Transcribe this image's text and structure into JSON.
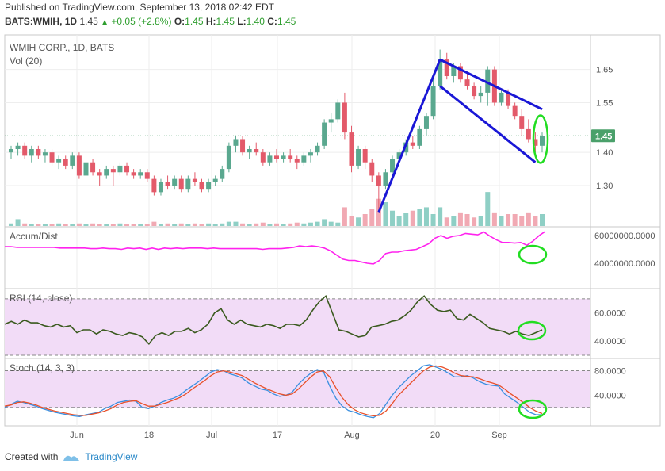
{
  "header": {
    "published": "Published on TradingView.com, September 13, 2018 02:42 EDT",
    "symbol": "BATS:WMIH, 1D",
    "last": "1.45",
    "change": "+0.05 (+2.8%)",
    "o_label": "O:",
    "o_value": "1.45",
    "h_label": "H:",
    "h_value": "1.45",
    "l_label": "L:",
    "l_value": "1.40",
    "c_label": "C:",
    "c_value": "1.45"
  },
  "footer": {
    "created_with": "Created with",
    "brand": "TradingView"
  },
  "colors": {
    "up": "#5aa88f",
    "down": "#e35a6a",
    "vol_up": "#8fcfc5",
    "vol_down": "#f1a9b3",
    "trend": "#1a17d6",
    "circle": "#22dd22",
    "accum": "#ff22ee",
    "rsi": "#3b5a1f",
    "stoch_k": "#3a8fe0",
    "stoch_d": "#e8502a",
    "pane_fill": "#f2dcf7",
    "last_badge": "#4aa06a"
  },
  "chart_data": [
    {
      "type": "candlestick",
      "title": "WMIH CORP., 1D, BATS",
      "subtitle": "Vol (20)",
      "ylim": [
        1.19,
        1.74
      ],
      "yticks": [
        "1.65",
        "1.55",
        "1.40",
        "1.30"
      ],
      "ytick_values": [
        1.65,
        1.55,
        1.4,
        1.3
      ],
      "last_price_label": "1.45",
      "last_price": 1.45,
      "xticks": [
        "Jun",
        "18",
        "Jul",
        "17",
        "Aug",
        "20",
        "Sep"
      ],
      "candles": [
        [
          1.4,
          1.42,
          1.38,
          1.41
        ],
        [
          1.41,
          1.43,
          1.39,
          1.42
        ],
        [
          1.42,
          1.43,
          1.38,
          1.39
        ],
        [
          1.39,
          1.42,
          1.37,
          1.41
        ],
        [
          1.41,
          1.42,
          1.38,
          1.39
        ],
        [
          1.39,
          1.41,
          1.37,
          1.4
        ],
        [
          1.4,
          1.41,
          1.36,
          1.37
        ],
        [
          1.37,
          1.39,
          1.35,
          1.38
        ],
        [
          1.38,
          1.39,
          1.35,
          1.36
        ],
        [
          1.36,
          1.4,
          1.35,
          1.39
        ],
        [
          1.39,
          1.4,
          1.32,
          1.33
        ],
        [
          1.33,
          1.38,
          1.32,
          1.37
        ],
        [
          1.37,
          1.38,
          1.33,
          1.34
        ],
        [
          1.34,
          1.35,
          1.3,
          1.33
        ],
        [
          1.33,
          1.36,
          1.32,
          1.35
        ],
        [
          1.35,
          1.36,
          1.3,
          1.34
        ],
        [
          1.34,
          1.37,
          1.33,
          1.36
        ],
        [
          1.36,
          1.37,
          1.33,
          1.34
        ],
        [
          1.34,
          1.35,
          1.32,
          1.33
        ],
        [
          1.33,
          1.35,
          1.32,
          1.34
        ],
        [
          1.34,
          1.35,
          1.31,
          1.32
        ],
        [
          1.32,
          1.33,
          1.27,
          1.28
        ],
        [
          1.28,
          1.32,
          1.27,
          1.31
        ],
        [
          1.31,
          1.33,
          1.29,
          1.3
        ],
        [
          1.3,
          1.33,
          1.29,
          1.32
        ],
        [
          1.32,
          1.33,
          1.28,
          1.29
        ],
        [
          1.29,
          1.33,
          1.28,
          1.32
        ],
        [
          1.32,
          1.34,
          1.3,
          1.31
        ],
        [
          1.31,
          1.32,
          1.28,
          1.29
        ],
        [
          1.29,
          1.32,
          1.28,
          1.31
        ],
        [
          1.31,
          1.33,
          1.3,
          1.32
        ],
        [
          1.32,
          1.36,
          1.31,
          1.35
        ],
        [
          1.35,
          1.43,
          1.34,
          1.42
        ],
        [
          1.42,
          1.45,
          1.4,
          1.44
        ],
        [
          1.44,
          1.45,
          1.39,
          1.4
        ],
        [
          1.4,
          1.42,
          1.38,
          1.41
        ],
        [
          1.41,
          1.43,
          1.39,
          1.4
        ],
        [
          1.4,
          1.41,
          1.36,
          1.37
        ],
        [
          1.37,
          1.4,
          1.36,
          1.39
        ],
        [
          1.39,
          1.41,
          1.37,
          1.38
        ],
        [
          1.38,
          1.4,
          1.37,
          1.39
        ],
        [
          1.39,
          1.41,
          1.37,
          1.38
        ],
        [
          1.38,
          1.39,
          1.35,
          1.37
        ],
        [
          1.37,
          1.4,
          1.36,
          1.39
        ],
        [
          1.39,
          1.41,
          1.37,
          1.4
        ],
        [
          1.4,
          1.43,
          1.39,
          1.42
        ],
        [
          1.42,
          1.5,
          1.41,
          1.49
        ],
        [
          1.49,
          1.52,
          1.46,
          1.5
        ],
        [
          1.5,
          1.56,
          1.49,
          1.55
        ],
        [
          1.55,
          1.58,
          1.44,
          1.46
        ],
        [
          1.46,
          1.48,
          1.34,
          1.36
        ],
        [
          1.36,
          1.42,
          1.35,
          1.41
        ],
        [
          1.41,
          1.42,
          1.35,
          1.37
        ],
        [
          1.37,
          1.38,
          1.31,
          1.33
        ],
        [
          1.33,
          1.34,
          1.23,
          1.3
        ],
        [
          1.3,
          1.35,
          1.29,
          1.34
        ],
        [
          1.34,
          1.39,
          1.33,
          1.38
        ],
        [
          1.38,
          1.41,
          1.37,
          1.4
        ],
        [
          1.4,
          1.44,
          1.39,
          1.43
        ],
        [
          1.43,
          1.45,
          1.41,
          1.42
        ],
        [
          1.42,
          1.48,
          1.41,
          1.47
        ],
        [
          1.47,
          1.52,
          1.45,
          1.51
        ],
        [
          1.51,
          1.62,
          1.5,
          1.6
        ],
        [
          1.6,
          1.71,
          1.59,
          1.68
        ],
        [
          1.68,
          1.7,
          1.62,
          1.63
        ],
        [
          1.63,
          1.67,
          1.61,
          1.66
        ],
        [
          1.66,
          1.67,
          1.61,
          1.62
        ],
        [
          1.62,
          1.64,
          1.59,
          1.6
        ],
        [
          1.6,
          1.61,
          1.56,
          1.57
        ],
        [
          1.57,
          1.6,
          1.55,
          1.58
        ],
        [
          1.58,
          1.66,
          1.54,
          1.65
        ],
        [
          1.65,
          1.66,
          1.54,
          1.55
        ],
        [
          1.55,
          1.59,
          1.54,
          1.58
        ],
        [
          1.58,
          1.59,
          1.53,
          1.54
        ],
        [
          1.54,
          1.55,
          1.5,
          1.51
        ],
        [
          1.51,
          1.53,
          1.45,
          1.47
        ],
        [
          1.47,
          1.5,
          1.43,
          1.44
        ],
        [
          1.44,
          1.46,
          1.4,
          1.42
        ],
        [
          1.42,
          1.46,
          1.4,
          1.45
        ]
      ],
      "volume": [
        3,
        8,
        3,
        2,
        2,
        2,
        2,
        3,
        2,
        2,
        3,
        2,
        3,
        2,
        2,
        2,
        3,
        2,
        2,
        2,
        2,
        5,
        2,
        3,
        2,
        3,
        2,
        3,
        2,
        3,
        2,
        3,
        5,
        5,
        3,
        2,
        3,
        4,
        2,
        3,
        2,
        3,
        4,
        3,
        4,
        5,
        8,
        5,
        4,
        22,
        12,
        10,
        14,
        20,
        32,
        28,
        18,
        12,
        15,
        18,
        20,
        22,
        14,
        22,
        10,
        12,
        16,
        14,
        10,
        12,
        40,
        16,
        12,
        14,
        14,
        12,
        16,
        12,
        14
      ],
      "channel_upper": [
        [
          1.68,
          63
        ],
        [
          1.53,
          78
        ]
      ],
      "channel_lower": [
        [
          1.6,
          63
        ],
        [
          1.37,
          77
        ]
      ],
      "impulse_line": [
        [
          1.22,
          54
        ],
        [
          1.68,
          63
        ]
      ]
    },
    {
      "type": "line",
      "title": "Accum/Dist",
      "yticks": [
        "60000000.0000",
        "40000000.0000"
      ],
      "ytick_values": [
        60000000,
        40000000
      ],
      "ylim": [
        24000000,
        64000000
      ],
      "values": [
        52,
        52,
        51.5,
        51.5,
        51.5,
        51.5,
        51.5,
        51.5,
        51.5,
        51,
        51,
        51,
        51,
        51,
        50.5,
        50.5,
        51,
        50.5,
        50.5,
        50,
        51,
        50.5,
        51,
        50,
        51,
        50,
        51,
        50.5,
        51,
        50.5,
        51,
        51,
        51,
        50.5,
        51,
        50.5,
        50.5,
        50.5,
        50.5,
        50.5,
        50.5,
        50.5,
        50,
        50.5,
        50.5,
        50.5,
        51,
        51.5,
        52.5,
        52,
        52.5,
        52,
        51,
        49,
        46,
        43,
        42,
        42,
        41,
        40,
        39.5,
        42,
        47,
        48,
        48,
        49,
        49.5,
        50,
        52,
        54,
        58,
        60,
        58,
        59.5,
        60,
        61.5,
        61,
        60.5,
        62.5,
        59.5,
        57,
        55,
        55,
        54.5,
        55,
        53,
        56,
        60,
        63
      ],
      "values_scale": 1000000
    },
    {
      "type": "line",
      "title": "RSI (14, close)",
      "yticks": [
        "60.0000",
        "40.0000"
      ],
      "ytick_values": [
        60,
        40
      ],
      "ylim": [
        30,
        75
      ],
      "bands": [
        70,
        30
      ],
      "values": [
        52,
        54,
        52,
        55,
        53,
        53,
        51,
        50,
        52,
        50,
        51,
        46,
        48,
        48,
        45,
        48,
        47,
        45,
        44,
        46,
        45,
        43,
        38,
        44,
        46,
        44,
        47,
        47,
        49,
        46,
        48,
        52,
        60,
        63,
        55,
        52,
        55,
        52,
        51,
        50,
        52,
        51,
        49,
        52,
        52,
        51,
        55,
        62,
        68,
        72,
        60,
        48,
        47,
        45,
        43,
        44,
        50,
        51,
        52,
        54,
        55,
        58,
        62,
        68,
        72,
        66,
        62,
        61,
        62,
        56,
        55,
        59,
        56,
        53,
        49,
        48,
        47,
        45,
        47,
        45,
        44,
        46,
        48
      ],
      "ov_circle": true
    },
    {
      "type": "line",
      "title": "Stoch (14, 3, 3)",
      "yticks": [
        "80.0000",
        "40.0000"
      ],
      "ytick_values": [
        80,
        40
      ],
      "ylim": [
        -5,
        95
      ],
      "bands": [
        80,
        20
      ],
      "series": [
        {
          "values": [
            20,
            25,
            30,
            28,
            25,
            22,
            18,
            15,
            12,
            10,
            8,
            6,
            5,
            8,
            10,
            12,
            18,
            22,
            28,
            30,
            32,
            30,
            20,
            18,
            22,
            28,
            32,
            35,
            40,
            48,
            55,
            62,
            70,
            78,
            82,
            80,
            75,
            72,
            68,
            60,
            55,
            50,
            48,
            42,
            38,
            40,
            45,
            58,
            68,
            76,
            82,
            78,
            55,
            35,
            22,
            15,
            12,
            8,
            5,
            3,
            10,
            25,
            40,
            52,
            62,
            72,
            80,
            88,
            90,
            86,
            82,
            76,
            70,
            70,
            72,
            68,
            62,
            58,
            56,
            55,
            42,
            35,
            28,
            20,
            12,
            8,
            8
          ]
        },
        {
          "values": [
            22,
            24,
            28,
            29,
            27,
            24,
            20,
            17,
            14,
            12,
            10,
            8,
            7,
            7,
            9,
            11,
            14,
            18,
            24,
            28,
            30,
            31,
            26,
            22,
            22,
            25,
            28,
            32,
            36,
            42,
            50,
            57,
            64,
            72,
            78,
            80,
            78,
            75,
            72,
            66,
            60,
            55,
            50,
            46,
            42,
            40,
            42,
            50,
            60,
            70,
            78,
            80,
            70,
            52,
            36,
            24,
            16,
            11,
            8,
            6,
            7,
            14,
            26,
            40,
            50,
            60,
            70,
            80,
            86,
            88,
            86,
            82,
            76,
            72,
            71,
            70,
            67,
            63,
            60,
            57,
            50,
            42,
            35,
            28,
            20,
            14,
            10
          ]
        }
      ],
      "ov_circle": true
    }
  ]
}
